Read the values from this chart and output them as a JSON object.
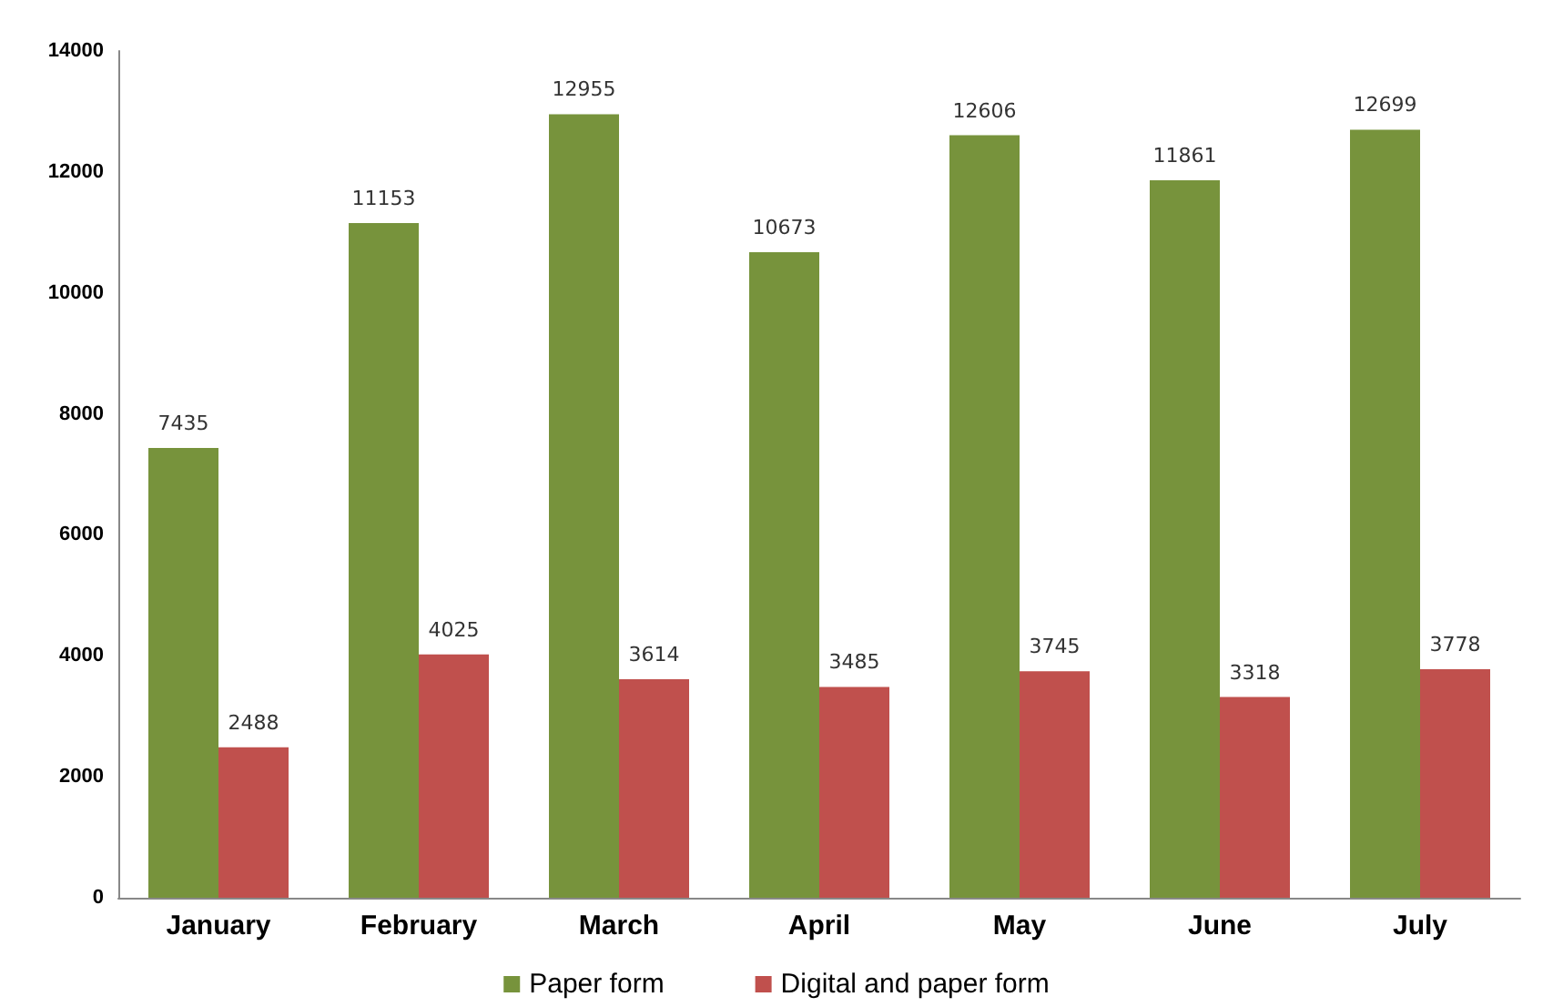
{
  "chart_data": {
    "type": "bar",
    "categories": [
      "January",
      "February",
      "March",
      "April",
      "May",
      "June",
      "July"
    ],
    "series": [
      {
        "name": "Paper form",
        "color": "#77933c",
        "values": [
          7435,
          11153,
          12955,
          10673,
          12606,
          11861,
          12699
        ]
      },
      {
        "name": "Digital and paper form",
        "color": "#c0504d",
        "values": [
          2488,
          4025,
          3614,
          3485,
          3745,
          3318,
          3778
        ]
      }
    ],
    "ylim": [
      0,
      14000
    ],
    "yticks": [
      0,
      2000,
      4000,
      6000,
      8000,
      10000,
      12000,
      14000
    ],
    "data_labels": true,
    "grid": false,
    "legend": "bottom"
  }
}
